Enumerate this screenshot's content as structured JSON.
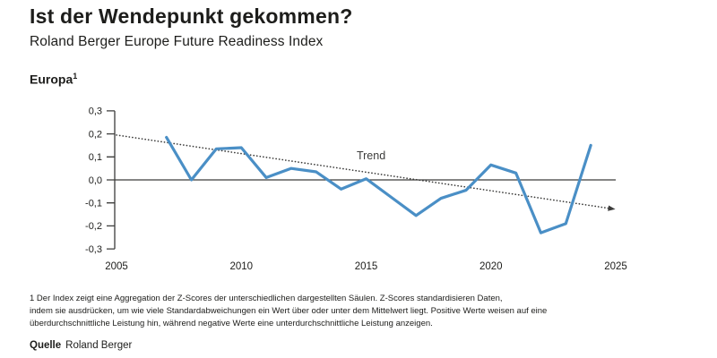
{
  "header": {
    "title": "Ist der Wendepunkt gekommen?",
    "subtitle": "Roland Berger Europe Future Readiness Index"
  },
  "chart_label": {
    "text": "Europa",
    "superscript": "1"
  },
  "chart_data": {
    "type": "line",
    "title": "Europa",
    "series": [
      {
        "name": "Europa",
        "color": "#4a8fc6",
        "x": [
          2007,
          2008,
          2009,
          2010,
          2011,
          2012,
          2013,
          2014,
          2015,
          2016,
          2017,
          2018,
          2019,
          2020,
          2021,
          2022,
          2023,
          2024
        ],
        "y": [
          0.185,
          0.0,
          0.135,
          0.14,
          0.01,
          0.05,
          0.035,
          -0.04,
          0.005,
          -0.075,
          -0.155,
          -0.08,
          -0.045,
          0.065,
          0.03,
          -0.23,
          -0.19,
          0.15
        ]
      }
    ],
    "trend": {
      "label": "Trend",
      "x": [
        2005,
        2024.7
      ],
      "y": [
        0.195,
        -0.123
      ],
      "style": "dotted",
      "color": "#3c3c3b",
      "label_x": 2015.2,
      "label_y": 0.09
    },
    "xlim": [
      2005,
      2025
    ],
    "ylim": [
      -0.3,
      0.3
    ],
    "x_ticks": [
      2005,
      2010,
      2015,
      2020,
      2025
    ],
    "x_tick_labels": [
      "2005",
      "2010",
      "2015",
      "2020",
      "2025"
    ],
    "y_ticks": [
      0.3,
      0.2,
      0.1,
      0.0,
      -0.1,
      -0.2,
      -0.3
    ],
    "y_tick_labels": [
      "0,3",
      "0,2",
      "0,1",
      "0,0",
      "-0,1",
      "-0,2",
      "-0,3"
    ],
    "grid": false,
    "zero_line": true,
    "legend_position": "none",
    "xlabel": "",
    "ylabel": ""
  },
  "footnote": {
    "lines": [
      "1 Der Index zeigt eine Aggregation der Z-Scores der unterschiedlichen dargestellten Säulen. Z-Scores standardisieren Daten,",
      "indem sie ausdrücken, um wie viele Standardabweichungen ein Wert über oder unter dem Mittelwert liegt. Positive Werte weisen auf eine",
      "überdurchschnittliche Leistung hin, während negative Werte eine unterdurchschnittliche Leistung anzeigen."
    ]
  },
  "source": {
    "label": "Quelle",
    "value": "Roland Berger"
  },
  "colors": {
    "line_blue": "#4a8fc6",
    "axis_dark": "#3c3c3b",
    "text_dark": "#1d1d1b",
    "background": "#ffffff"
  }
}
